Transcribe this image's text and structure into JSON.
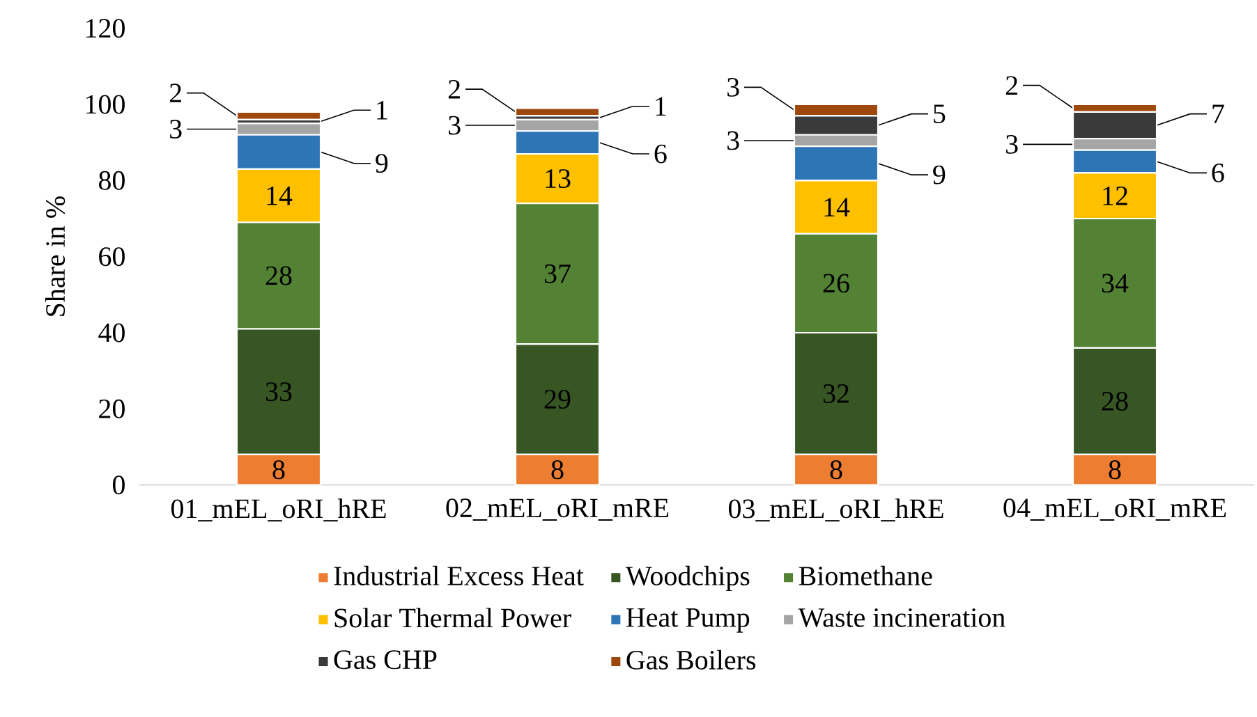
{
  "chart_data": {
    "type": "bar",
    "stacked": true,
    "ylabel": "Share in %",
    "categories": [
      "01_mEL_oRI_hRE",
      "02_mEL_oRI_mRE",
      "03_mEL_oRI_hRE",
      "04_mEL_oRI_mRE"
    ],
    "ylim": [
      0,
      120
    ],
    "yticks": [
      0,
      20,
      40,
      60,
      80,
      100,
      120
    ],
    "data_labels": true,
    "legend": "bottom",
    "grid": false,
    "series": [
      {
        "name": "Industrial Excess Heat",
        "color": "#ed7d31",
        "values": [
          8,
          8,
          8,
          8
        ]
      },
      {
        "name": "Woodchips",
        "color": "#375623",
        "values": [
          33,
          29,
          32,
          28
        ]
      },
      {
        "name": "Biomethane",
        "color": "#548235",
        "values": [
          28,
          37,
          26,
          34
        ]
      },
      {
        "name": "Solar Thermal Power",
        "color": "#ffc000",
        "values": [
          14,
          13,
          14,
          12
        ]
      },
      {
        "name": "Heat Pump",
        "color": "#2e75b6",
        "values": [
          9,
          6,
          9,
          6
        ]
      },
      {
        "name": "Waste incineration",
        "color": "#a5a5a5",
        "values": [
          3,
          3,
          3,
          3
        ]
      },
      {
        "name": "Gas CHP",
        "color": "#3a3a3a",
        "values": [
          1,
          1,
          5,
          7
        ]
      },
      {
        "name": "Gas Boilers",
        "color": "#9e480e",
        "values": [
          2,
          2,
          3,
          2
        ]
      }
    ]
  }
}
